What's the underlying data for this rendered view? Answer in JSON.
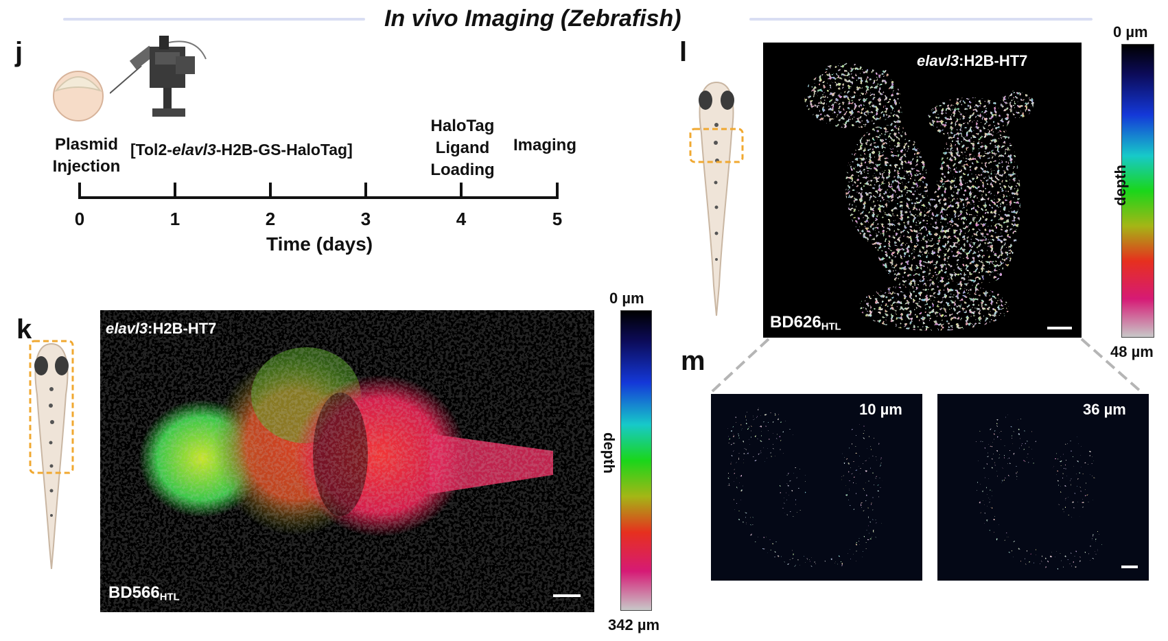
{
  "header": {
    "title": "In vivo Imaging (Zebrafish)"
  },
  "panel_j": {
    "label": "j",
    "step_plasmid": "Plasmid Injection",
    "construct_prefix": "[Tol2-",
    "construct_italic": "elavl3",
    "construct_suffix": "-H2B-GS-HaloTag]",
    "step_ligand": "HaloTag Ligand Loading",
    "step_imaging": "Imaging",
    "axis_label": "Time (days)",
    "ticks": [
      "0",
      "1",
      "2",
      "3",
      "4",
      "5"
    ]
  },
  "panel_k": {
    "label": "k",
    "image_label_italic": "elavl3",
    "image_label_rest": ":H2B-HT7",
    "dye_main": "BD566",
    "dye_sub": "HTL",
    "colorbar_top": "0 µm",
    "colorbar_bottom": "342 µm",
    "colorbar_axis": "depth"
  },
  "panel_l": {
    "label": "l",
    "image_label_italic": "elavl3",
    "image_label_rest": ":H2B-HT7",
    "dye_main": "BD626",
    "dye_sub": "HTL",
    "colorbar_top": "0 µm",
    "colorbar_bottom": "48 µm",
    "colorbar_axis": "depth"
  },
  "panel_m": {
    "label": "m",
    "slices": [
      "10 µm",
      "36 µm"
    ]
  },
  "colors": {
    "highlight_box": "#f0a830",
    "header_rule": "#d9def3",
    "cyan_signal": "#7fd3ff"
  }
}
